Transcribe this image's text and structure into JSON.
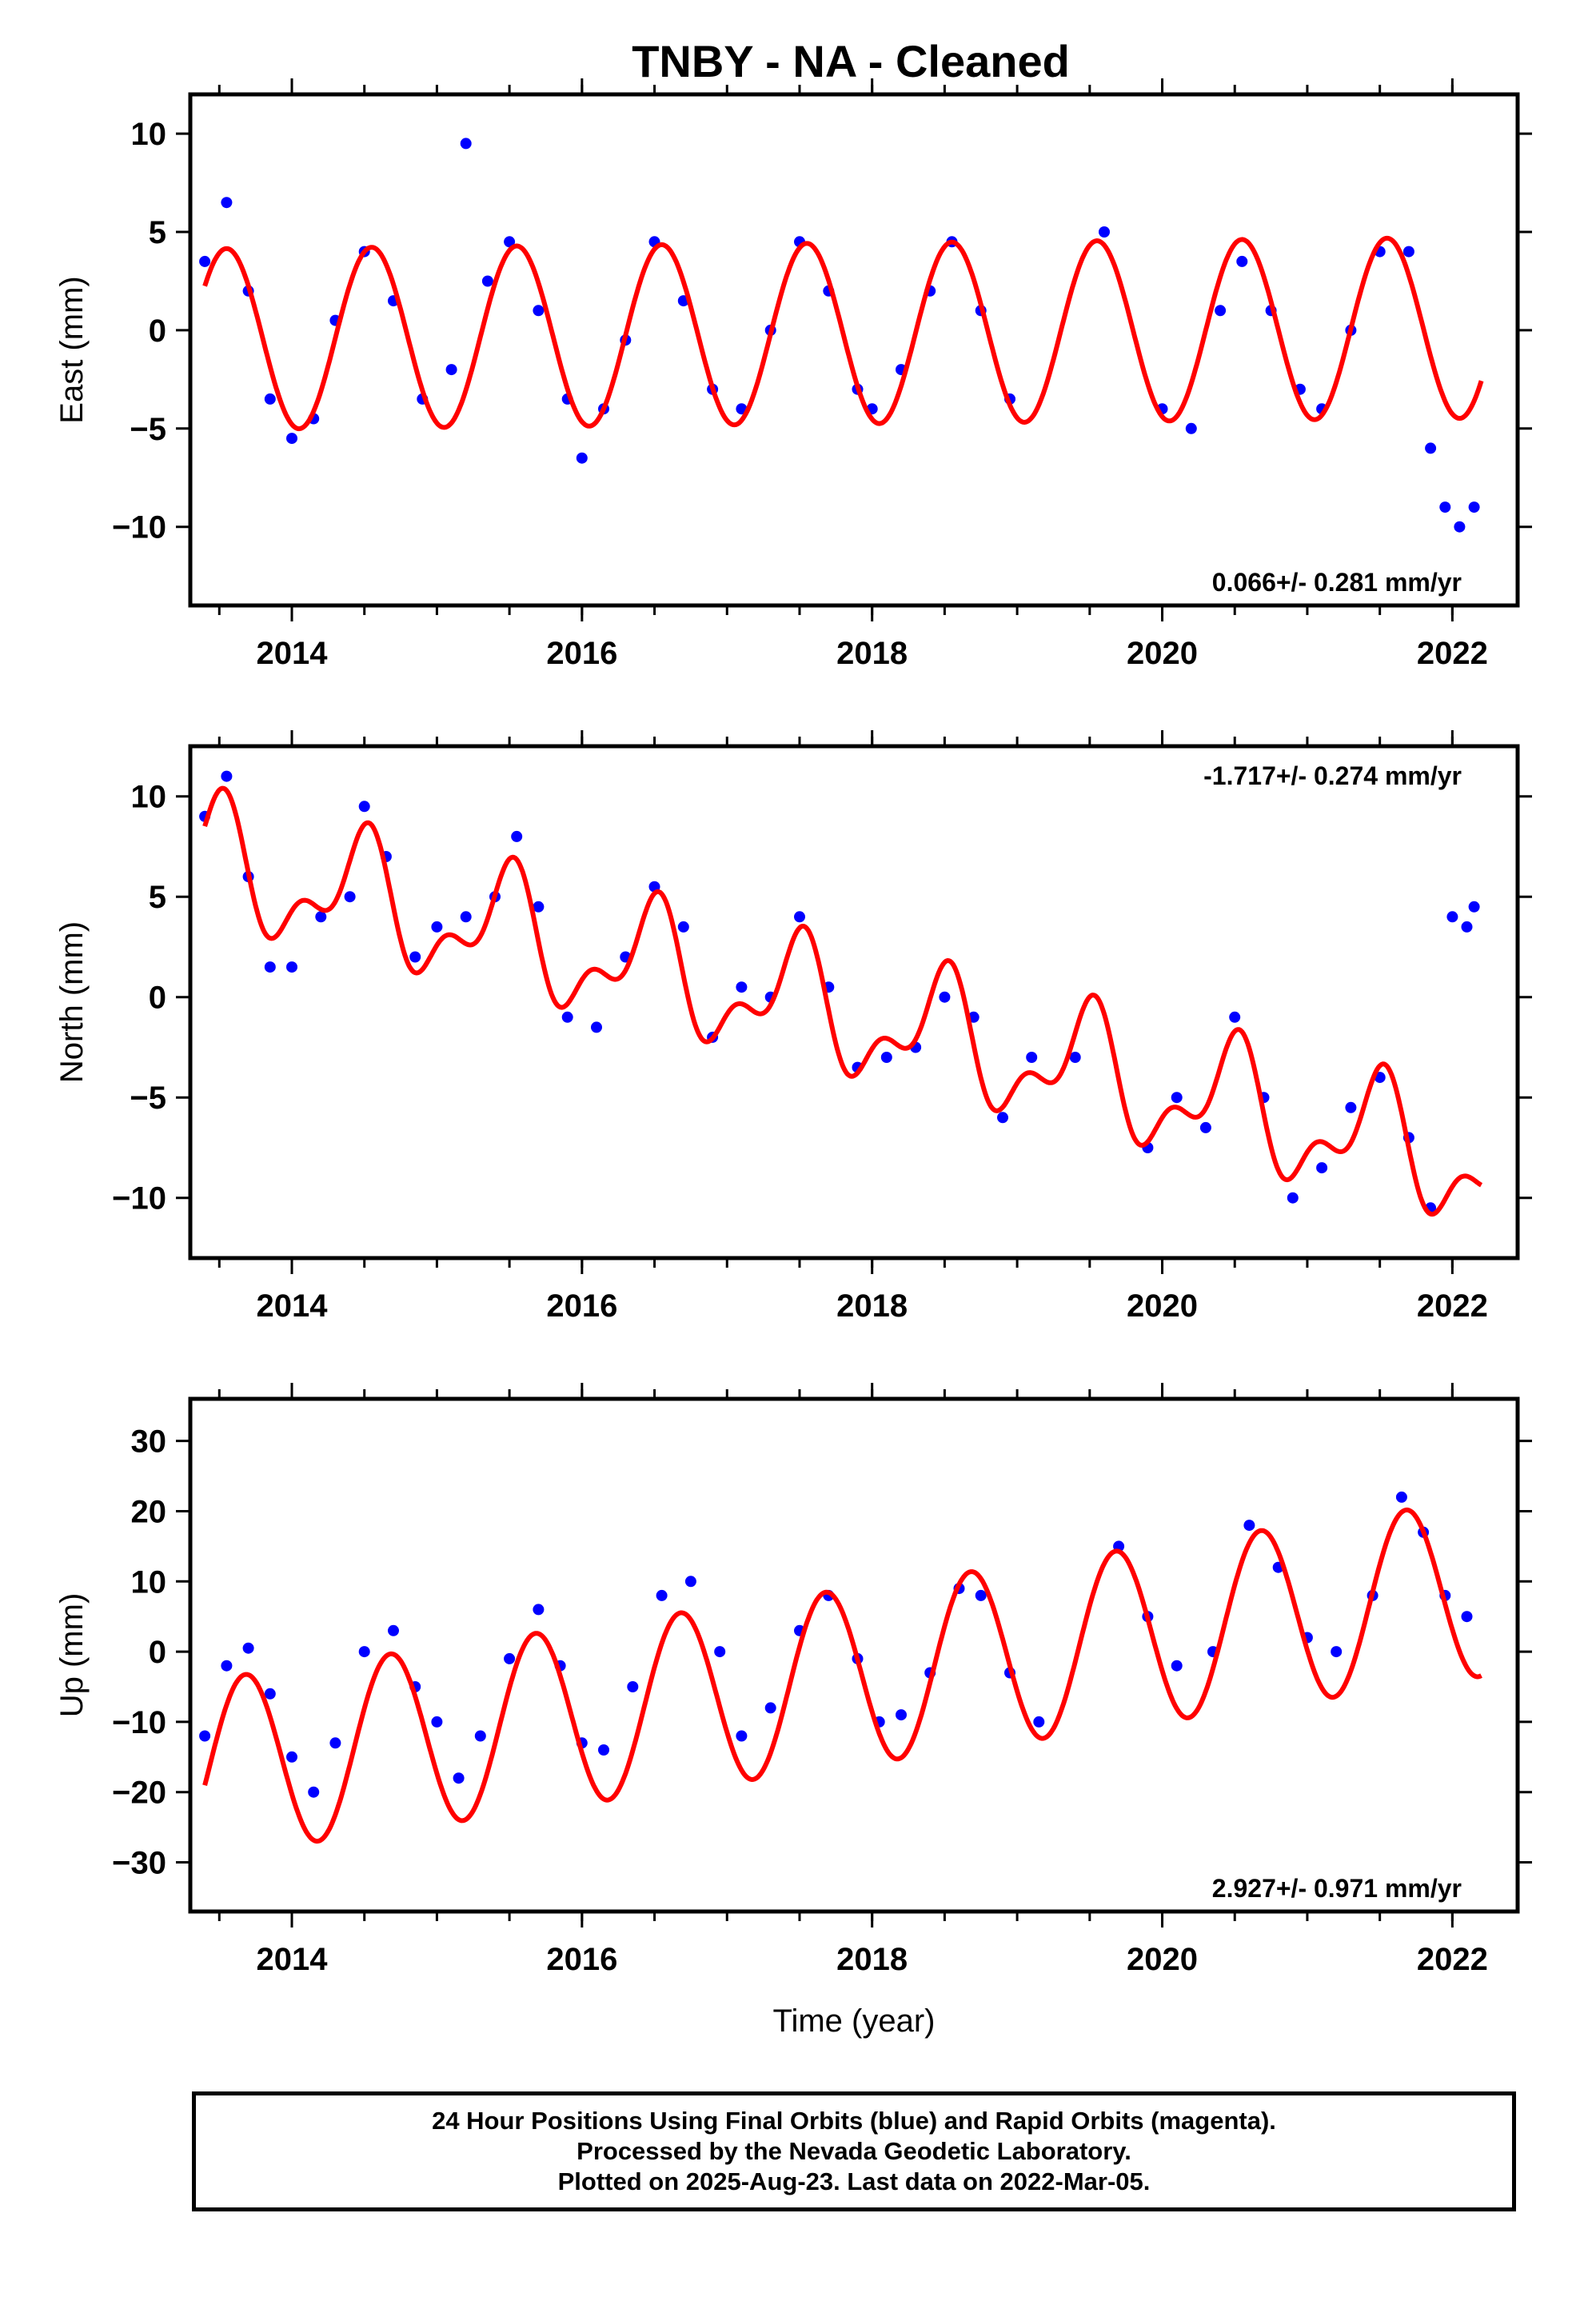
{
  "title": "TNBY  - NA - Cleaned",
  "colors": {
    "points": "#0000ff",
    "fit": "#ff0000",
    "frame": "#000000"
  },
  "chart_data": [
    {
      "type": "scatter",
      "ylabel": "East (mm)",
      "xlabel": "",
      "xlim": [
        2013.3,
        2022.45
      ],
      "ylim": [
        -14,
        12
      ],
      "xticks": [
        2014,
        2016,
        2018,
        2020,
        2022
      ],
      "yticks": [
        -10,
        -5,
        0,
        5,
        10
      ],
      "rate_text": "0.066+/- 0.281 mm/yr",
      "rate_position": "bottom-right",
      "series": [
        {
          "kind": "points",
          "x": [
            2013.4,
            2013.55,
            2013.7,
            2013.85,
            2014.0,
            2014.15,
            2014.3,
            2014.5,
            2014.7,
            2014.9,
            2015.1,
            2015.2,
            2015.35,
            2015.5,
            2015.7,
            2015.9,
            2016.0,
            2016.15,
            2016.3,
            2016.5,
            2016.7,
            2016.9,
            2017.1,
            2017.3,
            2017.5,
            2017.7,
            2017.9,
            2018.0,
            2018.2,
            2018.4,
            2018.55,
            2018.75,
            2018.95,
            2019.6,
            2020.0,
            2020.2,
            2020.4,
            2020.55,
            2020.75,
            2020.95,
            2021.1,
            2021.3,
            2021.5,
            2021.7,
            2021.85,
            2021.95,
            2022.05,
            2022.15
          ],
          "y": [
            3.5,
            6.5,
            2.0,
            -3.5,
            -5.5,
            -4.5,
            0.5,
            4.0,
            1.5,
            -3.5,
            -2.0,
            9.5,
            2.5,
            4.5,
            1.0,
            -3.5,
            -6.5,
            -4.0,
            -0.5,
            4.5,
            1.5,
            -3.0,
            -4.0,
            0.0,
            4.5,
            2.0,
            -3.0,
            -4.0,
            -2.0,
            2.0,
            4.5,
            1.0,
            -3.5,
            5.0,
            -4.0,
            -5.0,
            1.0,
            3.5,
            1.0,
            -3.0,
            -4.0,
            0.0,
            4.0,
            4.0,
            -6.0,
            -9.0,
            -10.0,
            -9.0
          ]
        },
        {
          "kind": "fit",
          "model": "rate+annual+semiannual",
          "x_range": [
            2013.4,
            2022.2
          ],
          "intercept": -0.15,
          "ref_year": 2018.0,
          "rate": 0.066,
          "annual_amplitude": 4.6,
          "annual_peak": 2017.55,
          "semiannual_amplitude": 0.0,
          "semiannual_peak": 2017.55
        }
      ]
    },
    {
      "type": "scatter",
      "ylabel": "North (mm)",
      "xlabel": "",
      "xlim": [
        2013.3,
        2022.45
      ],
      "ylim": [
        -13,
        12.5
      ],
      "xticks": [
        2014,
        2016,
        2018,
        2020,
        2022
      ],
      "yticks": [
        -10,
        -5,
        0,
        5,
        10
      ],
      "rate_text": "-1.717+/- 0.274 mm/yr",
      "rate_position": "top-right",
      "series": [
        {
          "kind": "points",
          "x": [
            2013.4,
            2013.55,
            2013.7,
            2013.85,
            2014.0,
            2014.2,
            2014.4,
            2014.5,
            2014.65,
            2014.85,
            2015.0,
            2015.2,
            2015.4,
            2015.55,
            2015.7,
            2015.9,
            2016.1,
            2016.3,
            2016.5,
            2016.7,
            2016.9,
            2017.1,
            2017.3,
            2017.5,
            2017.7,
            2017.9,
            2018.1,
            2018.3,
            2018.5,
            2018.7,
            2018.9,
            2019.1,
            2019.4,
            2019.9,
            2020.1,
            2020.3,
            2020.5,
            2020.7,
            2020.9,
            2021.1,
            2021.3,
            2021.5,
            2021.7,
            2021.85,
            2022.0,
            2022.1,
            2022.15
          ],
          "y": [
            9.0,
            11.0,
            6.0,
            1.5,
            1.5,
            4.0,
            5.0,
            9.5,
            7.0,
            2.0,
            3.5,
            4.0,
            5.0,
            8.0,
            4.5,
            -1.0,
            -1.5,
            2.0,
            5.5,
            3.5,
            -2.0,
            0.5,
            0.0,
            4.0,
            0.5,
            -3.5,
            -3.0,
            -2.5,
            0.0,
            -1.0,
            -6.0,
            -3.0,
            -3.0,
            -7.5,
            -5.0,
            -6.5,
            -1.0,
            -5.0,
            -10.0,
            -8.5,
            -5.5,
            -4.0,
            -7.0,
            -10.5,
            4.0,
            3.5,
            4.5
          ]
        },
        {
          "kind": "fit",
          "model": "rate+annual+semiannual",
          "x_range": [
            2013.4,
            2022.2
          ],
          "intercept": -1.2,
          "ref_year": 2018.0,
          "rate": -1.717,
          "annual_amplitude": 2.6,
          "annual_peak": 2017.48,
          "semiannual_amplitude": 1.5,
          "semiannual_peak": 2017.55
        }
      ]
    },
    {
      "type": "scatter",
      "ylabel": "Up (mm)",
      "xlabel": "Time (year)",
      "xlim": [
        2013.3,
        2022.45
      ],
      "ylim": [
        -37,
        36
      ],
      "xticks": [
        2014,
        2016,
        2018,
        2020,
        2022
      ],
      "yticks": [
        -30,
        -20,
        -10,
        0,
        10,
        20,
        30
      ],
      "rate_text": "2.927+/- 0.971 mm/yr",
      "rate_position": "bottom-right",
      "series": [
        {
          "kind": "points",
          "x": [
            2013.4,
            2013.55,
            2013.7,
            2013.85,
            2014.0,
            2014.15,
            2014.3,
            2014.5,
            2014.7,
            2014.85,
            2015.0,
            2015.15,
            2015.3,
            2015.5,
            2015.7,
            2015.85,
            2016.0,
            2016.15,
            2016.35,
            2016.55,
            2016.75,
            2016.95,
            2017.1,
            2017.3,
            2017.5,
            2017.7,
            2017.9,
            2018.05,
            2018.2,
            2018.4,
            2018.6,
            2018.75,
            2018.95,
            2019.15,
            2019.7,
            2019.9,
            2020.1,
            2020.35,
            2020.6,
            2020.8,
            2021.0,
            2021.2,
            2021.45,
            2021.65,
            2021.8,
            2021.95,
            2022.1
          ],
          "y": [
            -12.0,
            -2.0,
            0.5,
            -6.0,
            -15.0,
            -20.0,
            -13.0,
            0.0,
            3.0,
            -5.0,
            -10.0,
            -18.0,
            -12.0,
            -1.0,
            6.0,
            -2.0,
            -13.0,
            -14.0,
            -5.0,
            8.0,
            10.0,
            0.0,
            -12.0,
            -8.0,
            3.0,
            8.0,
            -1.0,
            -10.0,
            -9.0,
            -3.0,
            9.0,
            8.0,
            -3.0,
            -10.0,
            15.0,
            5.0,
            -2.0,
            0.0,
            18.0,
            12.0,
            2.0,
            0.0,
            8.0,
            22.0,
            17.0,
            8.0,
            5.0
          ]
        },
        {
          "kind": "fit",
          "model": "rate+annual+semiannual",
          "x_range": [
            2013.4,
            2022.2
          ],
          "intercept": -3.2,
          "ref_year": 2018.0,
          "rate": 2.927,
          "annual_amplitude": 12.6,
          "annual_peak": 2017.68,
          "semiannual_amplitude": 0.0,
          "semiannual_peak": 2017.68
        }
      ]
    }
  ],
  "footer": {
    "line1": "24 Hour Positions Using Final Orbits (blue) and Rapid Orbits (magenta).",
    "line2": "Processed by the Nevada Geodetic Laboratory.",
    "line3": "Plotted on 2025-Aug-23. Last data on 2022-Mar-05."
  }
}
